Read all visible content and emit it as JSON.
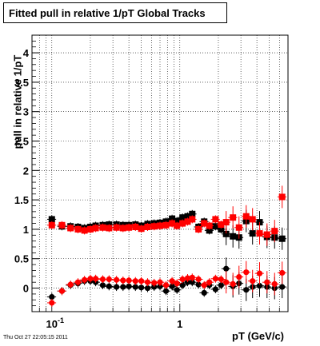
{
  "chart_data": {
    "type": "scatter",
    "title": "Fitted pull in relative 1/pT  Global Tracks",
    "xlabel": "pT (GeV/c)",
    "ylabel": "pull in relative 1/pT",
    "xscale": "log",
    "xlim": [
      0.07,
      7
    ],
    "ylim": [
      -0.4,
      4.3
    ],
    "yticks": [
      "0",
      "0.5",
      "1",
      "1.5",
      "2",
      "2.5",
      "3",
      "3.5",
      "4"
    ],
    "xticks": [
      {
        "value": 0.1,
        "base": "10",
        "exp": "-1"
      },
      {
        "value": 1,
        "base": "1",
        "exp": ""
      }
    ],
    "grid": true,
    "series": [
      {
        "color": "#000000",
        "marker": "square",
        "x": [
          0.1,
          0.12,
          0.14,
          0.16,
          0.18,
          0.2,
          0.22,
          0.25,
          0.28,
          0.32,
          0.36,
          0.4,
          0.45,
          0.5,
          0.56,
          0.63,
          0.7,
          0.78,
          0.87,
          0.95,
          1.05,
          1.15,
          1.25,
          1.4,
          1.55,
          1.7,
          1.9,
          2.1,
          2.3,
          2.6,
          2.9,
          3.3,
          3.7,
          4.2,
          4.8,
          5.5,
          6.3
        ],
        "y": [
          1.17,
          1.05,
          1.05,
          1.04,
          1.02,
          1.04,
          1.06,
          1.07,
          1.08,
          1.08,
          1.07,
          1.07,
          1.08,
          1.06,
          1.09,
          1.1,
          1.11,
          1.13,
          1.18,
          1.14,
          1.2,
          1.22,
          1.26,
          1.04,
          1.13,
          0.98,
          1.05,
          1.0,
          0.92,
          0.88,
          0.86,
          1.14,
          0.93,
          1.12,
          0.87,
          0.86,
          0.84
        ]
      },
      {
        "color": "#ff0000",
        "marker": "square",
        "x": [
          0.1,
          0.12,
          0.14,
          0.16,
          0.18,
          0.2,
          0.22,
          0.25,
          0.28,
          0.32,
          0.36,
          0.4,
          0.45,
          0.5,
          0.56,
          0.63,
          0.7,
          0.78,
          0.87,
          0.95,
          1.05,
          1.15,
          1.25,
          1.4,
          1.55,
          1.7,
          1.9,
          2.1,
          2.3,
          2.6,
          2.9,
          3.3,
          3.7,
          4.2,
          4.8,
          5.5,
          6.3
        ],
        "y": [
          1.07,
          1.07,
          1.02,
          1.0,
          0.98,
          1.0,
          1.02,
          1.03,
          1.02,
          1.03,
          1.02,
          1.03,
          1.04,
          1.01,
          1.04,
          1.05,
          1.06,
          1.07,
          1.1,
          1.06,
          1.1,
          1.13,
          1.17,
          1.0,
          1.1,
          1.06,
          1.17,
          1.08,
          1.12,
          1.2,
          1.03,
          1.22,
          1.17,
          0.93,
          0.91,
          0.97,
          1.55
        ]
      },
      {
        "color": "#000000",
        "marker": "circle",
        "x": [
          0.1,
          0.12,
          0.14,
          0.16,
          0.18,
          0.2,
          0.22,
          0.25,
          0.28,
          0.32,
          0.36,
          0.4,
          0.45,
          0.5,
          0.56,
          0.63,
          0.7,
          0.78,
          0.87,
          0.95,
          1.05,
          1.15,
          1.25,
          1.4,
          1.55,
          1.7,
          1.9,
          2.1,
          2.3,
          2.6,
          2.9,
          3.3,
          3.7,
          4.2,
          4.8,
          5.5,
          6.3
        ],
        "y": [
          -0.15,
          -0.05,
          0.05,
          0.08,
          0.12,
          0.12,
          0.1,
          0.05,
          0.03,
          0.02,
          0.02,
          0.03,
          0.02,
          0.01,
          0.0,
          0.02,
          0.03,
          -0.05,
          0.03,
          -0.03,
          0.05,
          0.1,
          0.1,
          0.06,
          -0.08,
          0.05,
          -0.02,
          0.05,
          0.33,
          0.03,
          0.08,
          -0.03,
          0.02,
          0.04,
          0.02,
          0.0,
          0.02
        ]
      },
      {
        "color": "#ff0000",
        "marker": "circle",
        "x": [
          0.1,
          0.12,
          0.14,
          0.16,
          0.18,
          0.2,
          0.22,
          0.25,
          0.28,
          0.32,
          0.36,
          0.4,
          0.45,
          0.5,
          0.56,
          0.63,
          0.7,
          0.78,
          0.87,
          0.95,
          1.05,
          1.15,
          1.25,
          1.4,
          1.55,
          1.7,
          1.9,
          2.1,
          2.3,
          2.6,
          2.9,
          3.3,
          3.7,
          4.2,
          4.8,
          5.5,
          6.3
        ],
        "y": [
          -0.25,
          -0.05,
          0.06,
          0.1,
          0.14,
          0.16,
          0.16,
          0.15,
          0.15,
          0.14,
          0.13,
          0.13,
          0.12,
          0.12,
          0.1,
          0.09,
          0.1,
          0.05,
          0.12,
          0.08,
          0.15,
          0.17,
          0.18,
          0.15,
          0.05,
          0.1,
          0.16,
          0.15,
          0.1,
          0.07,
          0.19,
          0.27,
          0.12,
          0.25,
          0.1,
          0.07,
          0.26
        ]
      }
    ]
  },
  "timestamp": "Thu Oct 27 22:05:15 2011"
}
